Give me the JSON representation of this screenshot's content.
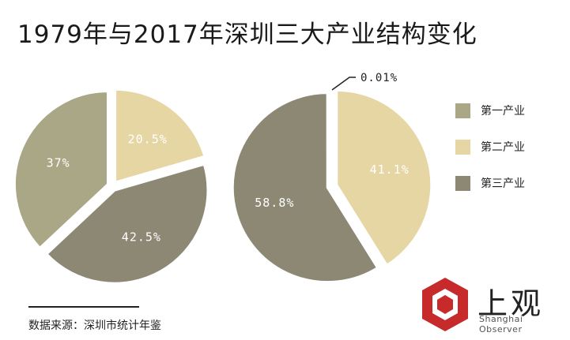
{
  "title": "1979年与2017年深圳三大产业结构变化",
  "source": "数据来源：深圳市统计年鉴",
  "logo": {
    "text": "上观",
    "sub": "Shanghai Observer"
  },
  "chart_data": [
    {
      "type": "pie",
      "title": "",
      "categories": [
        "第一产业",
        "第二产业",
        "第三产业"
      ],
      "values": [
        37,
        20.5,
        42.5
      ],
      "labels": [
        "37%",
        "20.5%",
        "42.5%"
      ],
      "colors": [
        "#a9a785",
        "#e6d6a4",
        "#8c8874"
      ]
    },
    {
      "type": "pie",
      "title": "",
      "categories": [
        "第一产业",
        "第二产业",
        "第三产业"
      ],
      "values": [
        0.01,
        41.1,
        58.8
      ],
      "labels": [
        "0.01%",
        "41.1%",
        "58.8%"
      ],
      "colors": [
        "#a9a785",
        "#e6d6a4",
        "#8c8874"
      ]
    }
  ],
  "legend": [
    {
      "label": "第一产业",
      "color": "#a9a785"
    },
    {
      "label": "第二产业",
      "color": "#e6d6a4"
    },
    {
      "label": "第三产业",
      "color": "#8c8874"
    }
  ]
}
